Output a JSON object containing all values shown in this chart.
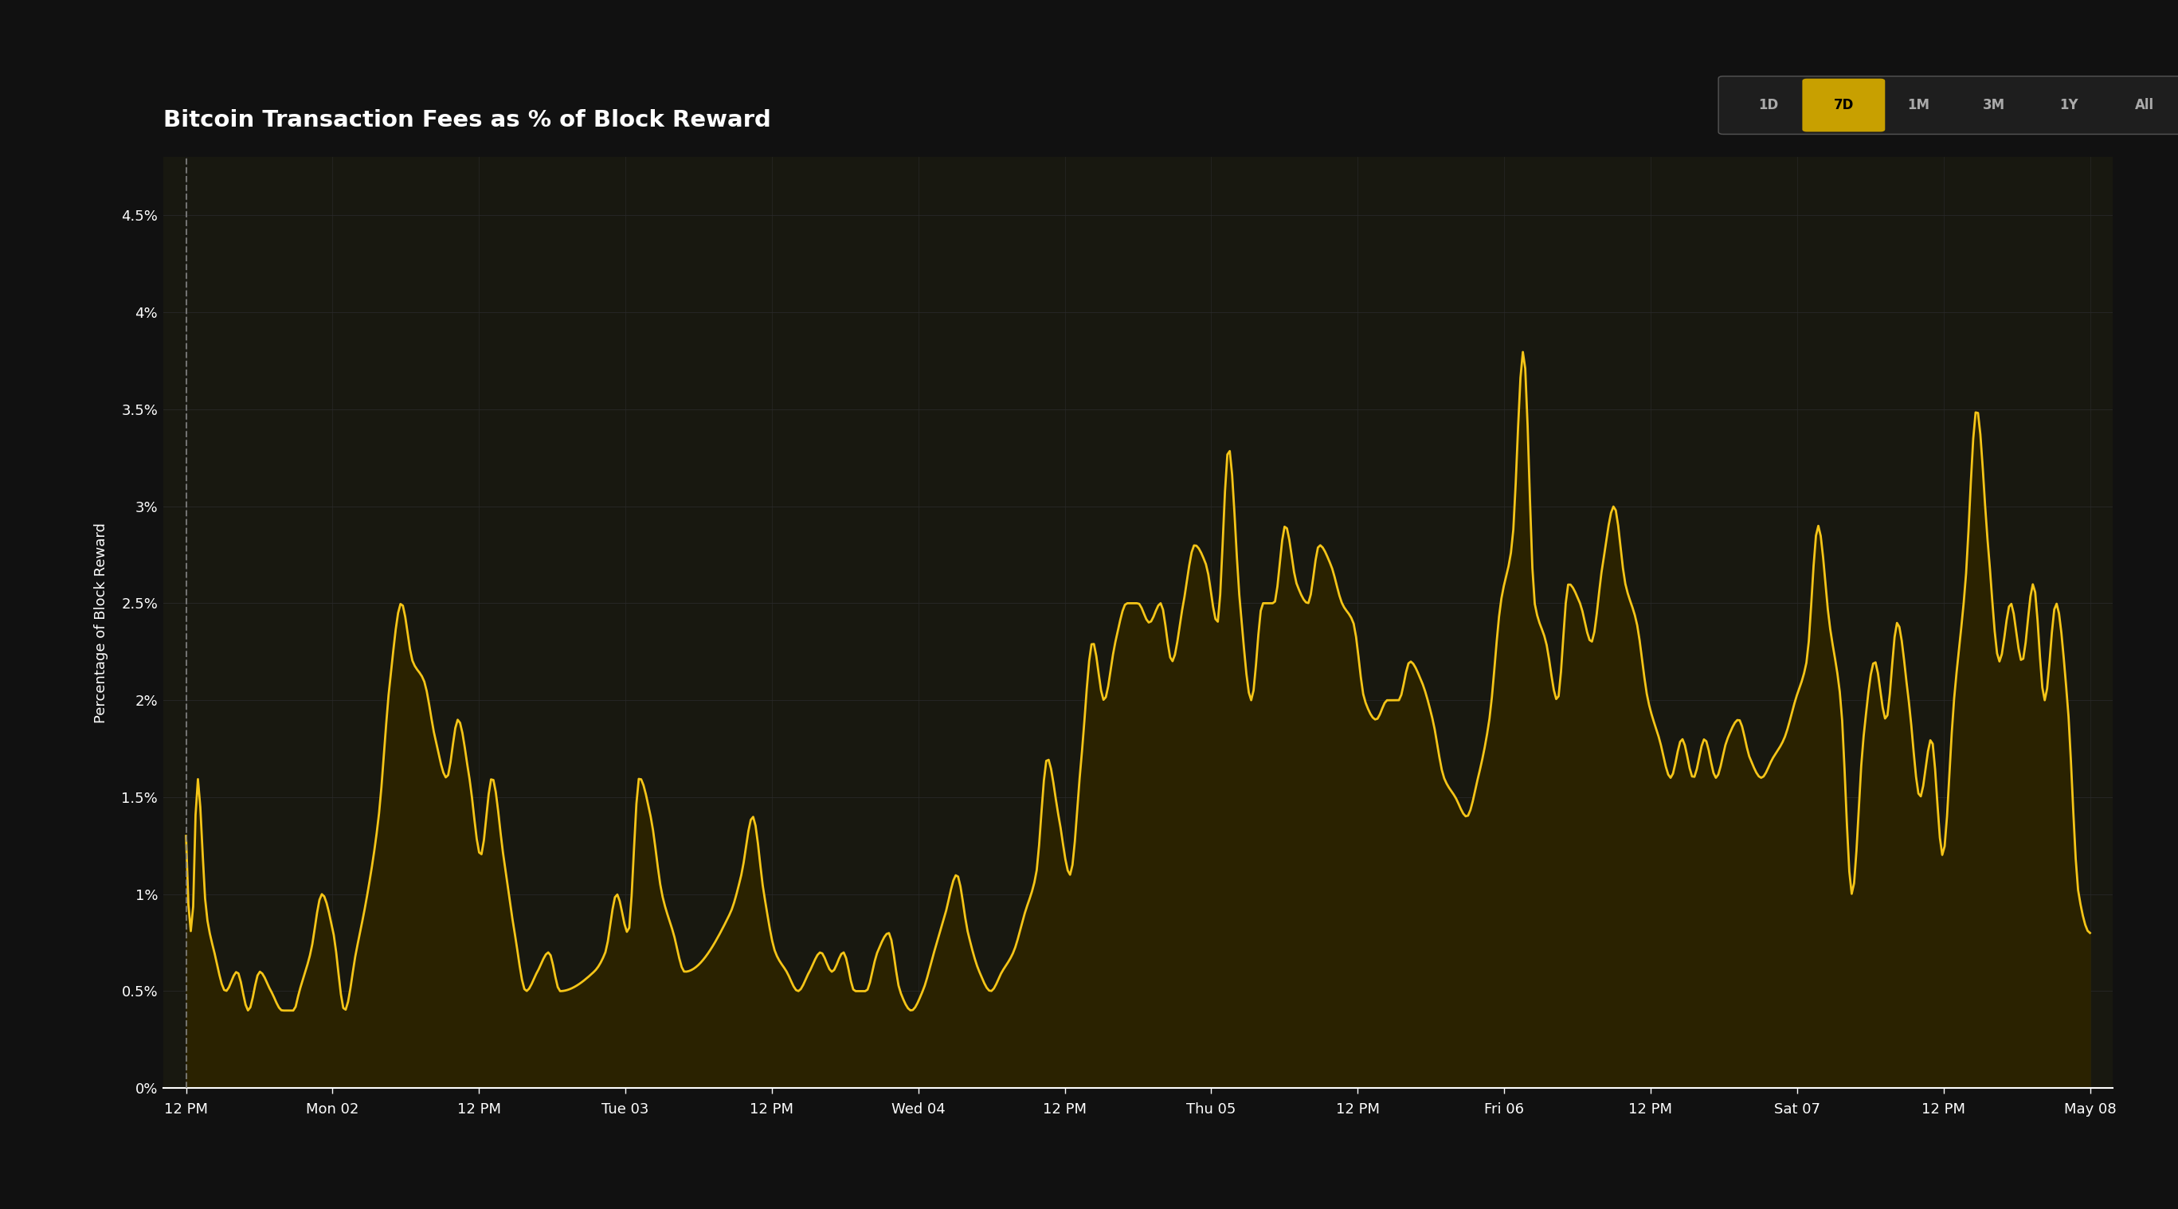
{
  "title": "Bitcoin Transaction Fees as % of Block Reward",
  "ylabel": "Percentage of Block Reward",
  "bg_color": "#111111",
  "plot_bg_color": "#181810",
  "line_color": "#F5C518",
  "fill_color": "#2a2200",
  "grid_color": "#2a2a2a",
  "text_color": "#ffffff",
  "title_fontsize": 21,
  "label_fontsize": 13,
  "tick_fontsize": 13,
  "yticks": [
    0.0,
    0.005,
    0.01,
    0.015,
    0.02,
    0.025,
    0.03,
    0.035,
    0.04,
    0.045
  ],
  "ytick_labels": [
    "0%",
    "0.5%",
    "1%",
    "1.5%",
    "2%",
    "2.5%",
    "3%",
    "3.5%",
    "4%",
    "4.5%"
  ],
  "xtick_labels": [
    "12 PM",
    "Mon 02",
    "12 PM",
    "Tue 03",
    "12 PM",
    "Wed 04",
    "12 PM",
    "Thu 05",
    "12 PM",
    "Fri 06",
    "12 PM",
    "Sat 07",
    "12 PM",
    "May 08"
  ],
  "nav_buttons": [
    "1D",
    "7D",
    "1M",
    "3M",
    "1Y",
    "All"
  ],
  "active_button": "7D",
  "active_btn_bg": "#c8a000",
  "active_btn_text": "#000000",
  "inactive_btn_bg": "#222222",
  "inactive_btn_text": "#aaaaaa",
  "nav_border_color": "#444444"
}
